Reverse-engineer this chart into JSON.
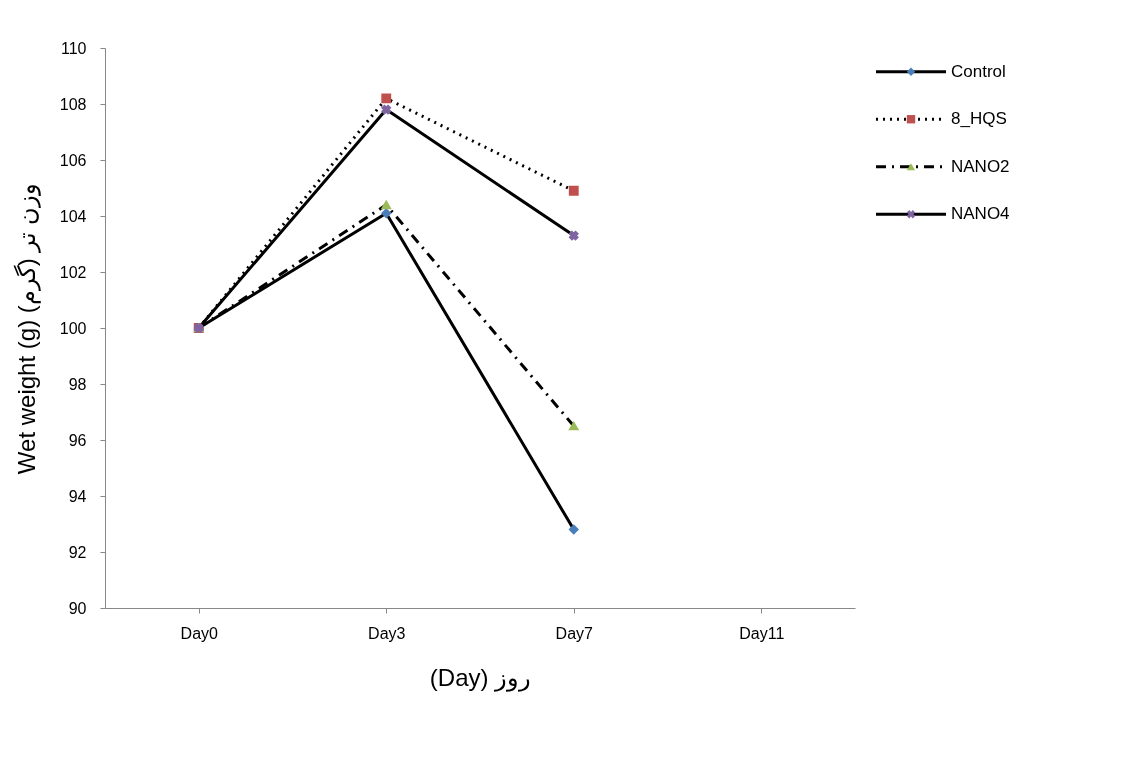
{
  "chart_data": {
    "type": "line",
    "xlabel": "(Day) روز",
    "ylabel": "Wet weight (g) وزن تر (گرم)",
    "categories": [
      "Day0",
      "Day3",
      "Day7",
      "Day11"
    ],
    "ylim": [
      90,
      110
    ],
    "yticks": [
      90,
      92,
      94,
      96,
      98,
      100,
      102,
      104,
      106,
      108,
      110
    ],
    "grid": false,
    "legend": "right",
    "series": [
      {
        "name": "Control",
        "color": "#4a7ebb",
        "marker": "diamond",
        "line_style": "solid",
        "values": [
          100,
          104.1,
          92.8,
          null
        ]
      },
      {
        "name": "8_HQS",
        "color": "#c0504d",
        "marker": "square",
        "line_style": "dotted",
        "values": [
          100,
          108.2,
          104.9,
          null
        ]
      },
      {
        "name": "NANO2",
        "color": "#9bbb59",
        "marker": "triangle",
        "line_style": "dashed",
        "values": [
          100,
          104.4,
          96.5,
          null
        ]
      },
      {
        "name": "NANO4",
        "color": "#8064a2",
        "marker": "cross",
        "line_style": "solid",
        "values": [
          100,
          107.8,
          103.3,
          null
        ]
      }
    ]
  }
}
